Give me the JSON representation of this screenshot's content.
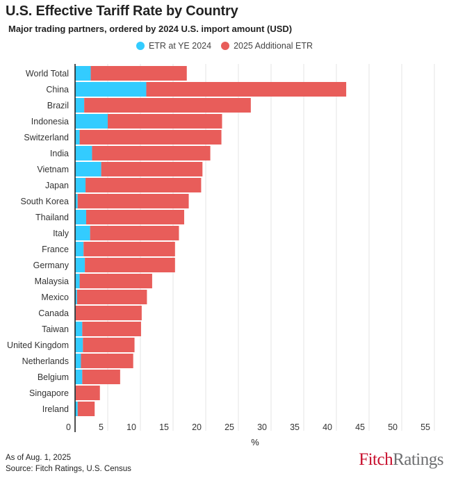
{
  "title": "U.S. Effective Tariff Rate by Country",
  "subtitle": "Major trading partners, ordered by 2024 U.S. import amount (USD)",
  "footer": {
    "as_of": "As of Aug. 1, 2025",
    "source": "Source: Fitch Ratings, U.S. Census"
  },
  "logo": {
    "part1": "Fitch",
    "part2": "Ratings"
  },
  "chart_data": {
    "type": "bar",
    "orientation": "horizontal",
    "stacked": true,
    "title": "U.S. Effective Tariff Rate by Country",
    "subtitle": "Major trading partners, ordered by 2024 U.S. import amount (USD)",
    "xlabel": "%",
    "ylabel": "",
    "xlim": [
      0,
      58
    ],
    "xticks": [
      0,
      5,
      10,
      15,
      20,
      25,
      30,
      35,
      40,
      45,
      50,
      55
    ],
    "grid": true,
    "legend_position": "top-center",
    "categories": [
      "World Total",
      "China",
      "Brazil",
      "Indonesia",
      "Switzerland",
      "India",
      "Vietnam",
      "Japan",
      "South Korea",
      "Thailand",
      "Italy",
      "France",
      "Germany",
      "Malaysia",
      "Mexico",
      "Canada",
      "Taiwan",
      "United Kingdom",
      "Netherlands",
      "Belgium",
      "Singapore",
      "Ireland"
    ],
    "series": [
      {
        "name": "ETR at YE 2024",
        "color": "#33ccff",
        "values": [
          2.4,
          10.9,
          1.4,
          5.0,
          0.7,
          2.6,
          4.0,
          1.6,
          0.4,
          1.7,
          2.3,
          1.3,
          1.5,
          0.7,
          0.3,
          0.1,
          1.1,
          1.2,
          0.9,
          1.1,
          0.1,
          0.4
        ]
      },
      {
        "name": "2025 Additional ETR",
        "color": "#e85d5a",
        "values": [
          14.7,
          30.6,
          25.5,
          17.5,
          21.7,
          18.1,
          15.5,
          17.7,
          17.0,
          15.0,
          13.6,
          14.0,
          13.8,
          11.1,
          10.7,
          10.1,
          9.0,
          7.9,
          8.0,
          5.8,
          3.7,
          2.6
        ]
      }
    ]
  }
}
